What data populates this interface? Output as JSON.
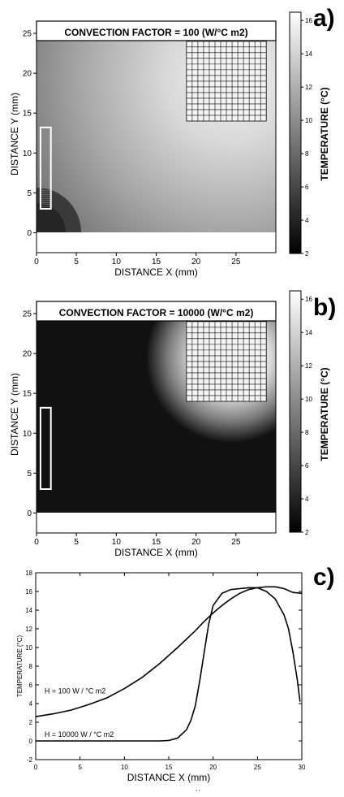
{
  "chart_data": [
    {
      "type": "heatmap",
      "panel_label": "a)",
      "title": "CONVECTION FACTOR = 100  (W/°C m2)",
      "xlabel": "DISTANCE  X (mm)",
      "ylabel": "DISTANCE  Y  (mm)",
      "xlim": [
        0,
        30
      ],
      "ylim": [
        -2.5,
        25
      ],
      "xticks": [
        0,
        5,
        10,
        15,
        20,
        25
      ],
      "yticks": [
        0,
        5,
        10,
        15,
        20,
        25
      ],
      "colorbar": {
        "label": "TEMPERATURE  (°C)",
        "range": [
          2,
          16.5
        ],
        "ticks": [
          2,
          4,
          6,
          8,
          10,
          12,
          14,
          16
        ]
      },
      "heat_source": {
        "x": [
          18.8,
          28.8
        ],
        "y": [
          14,
          24
        ]
      },
      "sensor_strip": {
        "x": [
          0.5,
          1.8
        ],
        "y": [
          3,
          13.2
        ]
      },
      "convection_h": 100
    },
    {
      "type": "heatmap",
      "panel_label": "b)",
      "title": "CONVECTION FACTOR = 10000 (W/°C m2)",
      "xlabel": "DISTANCE X (mm)",
      "ylabel": "DISTANCE  Y (mm)",
      "xlim": [
        0,
        30
      ],
      "ylim": [
        -2.5,
        25
      ],
      "xticks": [
        0,
        5,
        10,
        15,
        20,
        25
      ],
      "yticks": [
        0,
        5,
        10,
        15,
        20,
        25
      ],
      "colorbar": {
        "label": "TEMPERATURE  (°C)",
        "range": [
          2,
          16.5
        ],
        "ticks": [
          2,
          4,
          6,
          8,
          10,
          12,
          14,
          16
        ]
      },
      "heat_source": {
        "x": [
          18.8,
          28.8
        ],
        "y": [
          14,
          24
        ]
      },
      "sensor_strip": {
        "x": [
          0.5,
          1.8
        ],
        "y": [
          3,
          13.2
        ]
      },
      "convection_h": 10000
    },
    {
      "type": "line",
      "panel_label": "c)",
      "xlabel": "DISTANCE X (mm)",
      "ylabel": "TEMPERATURE  (°C)",
      "xlim": [
        0,
        30
      ],
      "ylim": [
        -2,
        18
      ],
      "xticks": [
        0,
        5,
        10,
        15,
        20,
        25,
        30
      ],
      "yticks": [
        -2,
        0,
        2,
        4,
        6,
        8,
        10,
        12,
        14,
        16,
        18
      ],
      "series": [
        {
          "name": "H =  100  W / °C m2",
          "x": [
            0,
            2,
            4,
            6,
            8,
            10,
            12,
            14,
            16,
            18,
            19,
            20,
            21,
            22,
            23,
            24,
            25,
            26,
            27,
            28,
            29,
            30
          ],
          "y": [
            2.6,
            2.9,
            3.3,
            3.9,
            4.6,
            5.6,
            6.8,
            8.3,
            10.0,
            11.8,
            12.8,
            13.7,
            14.5,
            15.2,
            15.8,
            16.2,
            16.4,
            16.5,
            16.5,
            16.3,
            15.9,
            15.8
          ]
        },
        {
          "name": "H = 10000  W / °C m2",
          "x": [
            0,
            5,
            10,
            14,
            15,
            16,
            17,
            17.5,
            18,
            18.5,
            19,
            19.5,
            20,
            21,
            22,
            23,
            24,
            25,
            26,
            27,
            28,
            28.5,
            29,
            29.5,
            29.8
          ],
          "y": [
            0,
            0,
            0,
            0,
            0.05,
            0.3,
            1.2,
            2.2,
            3.8,
            6.5,
            9.5,
            12.5,
            14.5,
            15.8,
            16.2,
            16.3,
            16.4,
            16.4,
            16.0,
            15.2,
            13.5,
            12.0,
            9.5,
            6.5,
            4.2
          ]
        }
      ],
      "footer": "' '"
    }
  ]
}
